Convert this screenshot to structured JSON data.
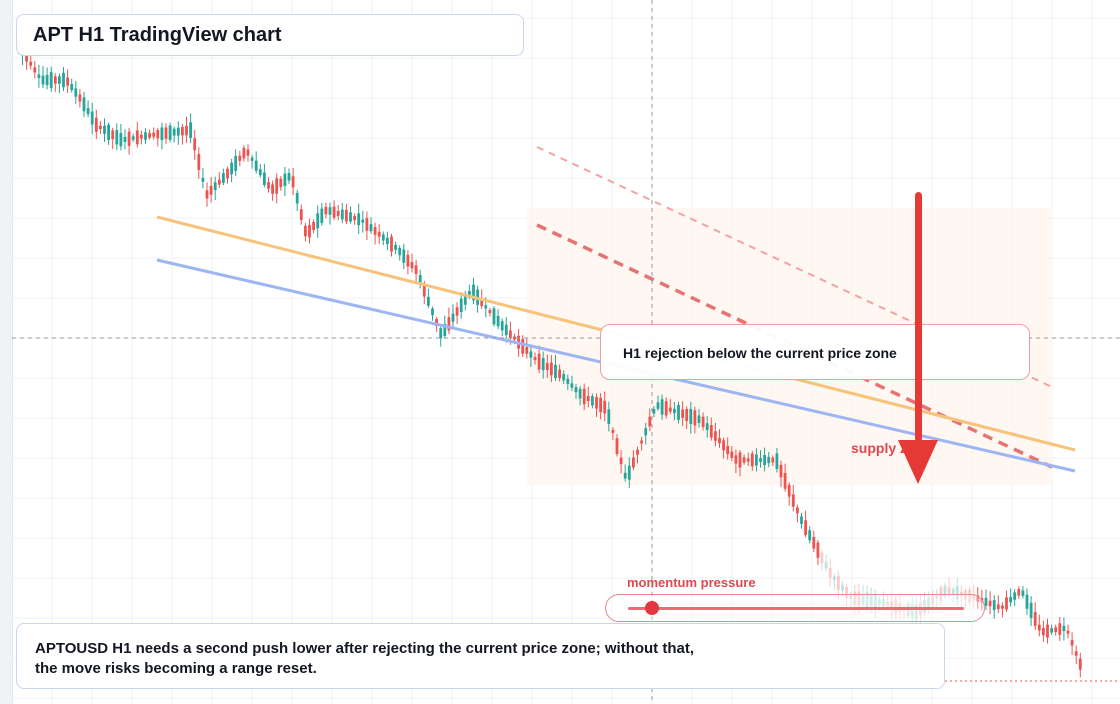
{
  "header": {
    "title": "APT H1 TradingView chart"
  },
  "callout": {
    "text": "H1 rejection below the current price zone"
  },
  "zone": {
    "label": "supply zone"
  },
  "momentum": {
    "label": "momentum pressure",
    "level": 0.07
  },
  "note": {
    "line1": "APTOUSD H1 needs a second push lower after rejecting the current price zone; without that,",
    "line2": "the move risks becoming a range reset."
  },
  "colors": {
    "up": "#26a69a",
    "down": "#ef5350",
    "orange_trendline": "#f7c37a",
    "blue_trendline": "#9db5f2",
    "supply_zone": "#fff4ec",
    "arrow": "#e53935",
    "accent_red": "#e0474f"
  },
  "icons": {
    "arrow": "down-arrow-icon"
  },
  "chart_data": {
    "type": "candlestick",
    "symbol": "APTOUSD",
    "timeframe": "H1",
    "title": "APT H1 TradingView chart",
    "grid": true,
    "crosshair": true,
    "trend": "down",
    "annotations": [
      "H1 rejection below the current price zone",
      "supply zone",
      "momentum pressure"
    ],
    "overlays": [
      "orange descending trendline",
      "blue descending trendline",
      "red dashed descending channel",
      "shaded supply zone",
      "large red down arrow"
    ]
  }
}
